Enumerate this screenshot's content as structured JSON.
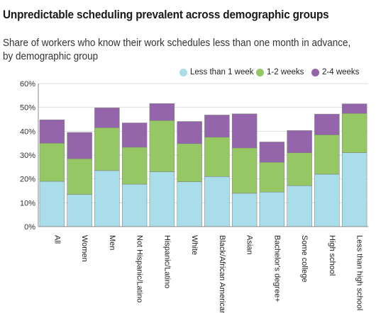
{
  "title": "Unpredictable scheduling prevalent across demographic groups",
  "subtitle": "Share of workers who know their work schedules less than one month in advance, by demographic group",
  "colors": {
    "less_than_1_week": "#a8dde9",
    "one_to_2_weeks": "#95c864",
    "two_to_4_weeks": "#9565ab",
    "grid": "#dddddd",
    "axis": "#888888"
  },
  "chart_data": {
    "type": "bar",
    "stacked": true,
    "title": "Unpredictable scheduling prevalent across demographic groups",
    "subtitle": "Share of workers who know their work schedules less than one month in advance, by demographic group",
    "xlabel": "",
    "ylabel": "",
    "ylim": [
      0,
      60
    ],
    "yticks": [
      "0%",
      "10%",
      "20%",
      "30%",
      "40%",
      "50%",
      "60%"
    ],
    "grid": true,
    "legend_position": "top-right",
    "categories": [
      "All",
      "Women",
      "Men",
      "Not Hispanic/Latino",
      "Hispanic/Latino",
      "White",
      "Black/African American",
      "Asian",
      "Bachelor's degree+",
      "Some college",
      "High school",
      "Less than high school"
    ],
    "series": [
      {
        "name": "Less than 1 week",
        "values": [
          19,
          13.5,
          23.5,
          17.8,
          23,
          18.8,
          21,
          14,
          14.5,
          17.2,
          22,
          31
        ]
      },
      {
        "name": "1-2 weeks",
        "values": [
          16,
          15,
          18,
          15.5,
          21.5,
          16,
          16.5,
          19,
          12.5,
          13.8,
          16.5,
          16.5
        ]
      },
      {
        "name": "2-4 weeks",
        "values": [
          9.8,
          11,
          8.3,
          10.2,
          7.1,
          9.3,
          9.3,
          14.3,
          8.5,
          9.3,
          8.7,
          4
        ]
      }
    ]
  }
}
